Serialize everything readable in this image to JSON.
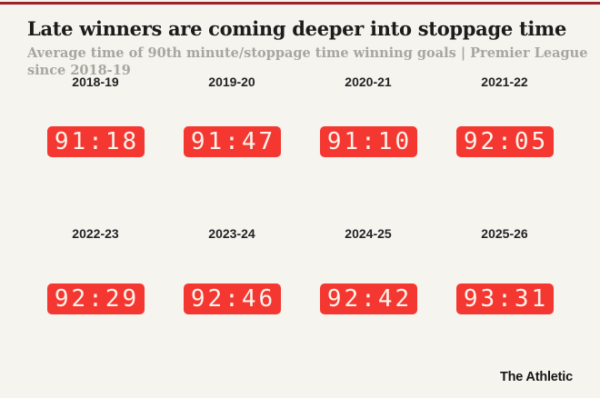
{
  "page": {
    "background_color": "#f5f4ef",
    "top_rule_color": "#9e2226"
  },
  "header": {
    "title": "Late winners are coming deeper into stoppage time",
    "subtitle": "Average time of 90th minute/stoppage time winning goals | Premier League since 2018-19"
  },
  "chart_data": {
    "type": "table",
    "title": "Late winners are coming deeper into stoppage time",
    "subtitle": "Average time of 90th minute/stoppage time winning goals | Premier League since 2018-19",
    "categories": [
      "2018-19",
      "2019-20",
      "2020-21",
      "2021-22",
      "2022-23",
      "2023-24",
      "2024-25",
      "2025-26"
    ],
    "values": [
      "91:18",
      "91:47",
      "91:10",
      "92:05",
      "92:29",
      "92:46",
      "92:42",
      "93:31"
    ],
    "value_format": "minute:second of average winning goal time",
    "layout": {
      "rows": 2,
      "columns": 4,
      "legend": "none",
      "grid": "off"
    }
  },
  "clocks": [
    {
      "season": "2018-19",
      "time": "91:18"
    },
    {
      "season": "2019-20",
      "time": "91:47"
    },
    {
      "season": "2020-21",
      "time": "91:10"
    },
    {
      "season": "2021-22",
      "time": "92:05"
    },
    {
      "season": "2022-23",
      "time": "92:29"
    },
    {
      "season": "2023-24",
      "time": "92:46"
    },
    {
      "season": "2024-25",
      "time": "92:42"
    },
    {
      "season": "2025-26",
      "time": "93:31"
    }
  ],
  "colors": {
    "clock_background": "#f43730",
    "clock_text": "#fcf4ed",
    "title_text": "#1c1c1a",
    "subtitle_text": "#a7a69f"
  },
  "footer": {
    "brand": "The Athletic"
  }
}
